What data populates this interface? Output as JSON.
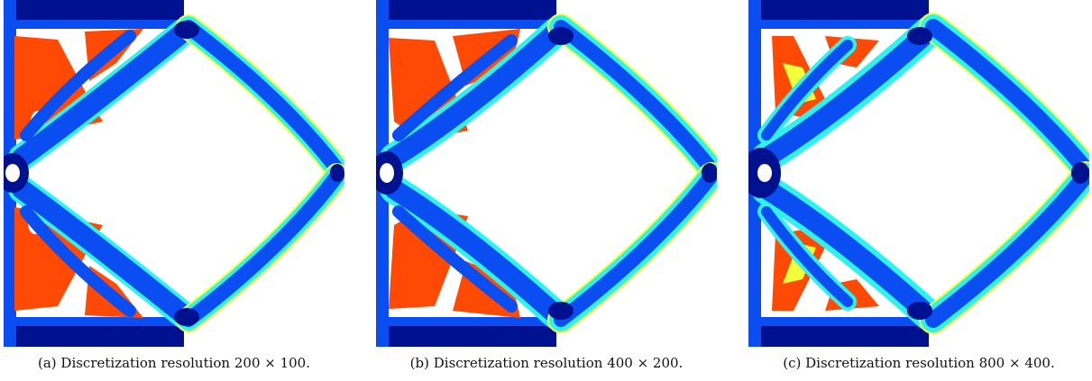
{
  "colors": {
    "dark_blue": "#00118f",
    "blue": "#0a4df0",
    "cyan": "#2ef2ee",
    "yellow": "#f2ff3a",
    "orange": "#ff4a05",
    "background": "#ffffff"
  },
  "panels": [
    {
      "id": "a",
      "caption": "(a) Discretization resolution 200 × 100."
    },
    {
      "id": "b",
      "caption": "(b) Discretization resolution 400 × 200."
    },
    {
      "id": "c",
      "caption": "(c) Discretization resolution 800 × 400."
    }
  ]
}
